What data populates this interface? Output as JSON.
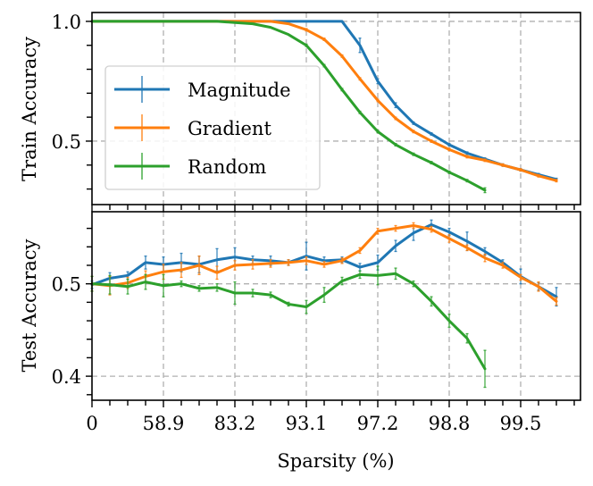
{
  "chart_data": [
    {
      "type": "line",
      "panel": "top",
      "title": "",
      "xlabel": "",
      "ylabel": "Train Accuracy",
      "ylim": [
        0.235,
        1.037
      ],
      "yticks_major": [
        0.5,
        1.0
      ],
      "ytick_labels": [
        "0.5",
        "1.0"
      ],
      "yticks_minor_step": 0.1,
      "x_index": [
        0,
        1,
        2,
        3,
        4,
        5,
        6,
        7,
        8,
        9,
        10,
        11,
        12,
        13,
        14,
        15,
        16,
        17,
        18,
        19,
        20,
        21,
        22,
        23,
        24,
        25,
        26
      ],
      "grid": true,
      "legend": {
        "placement": "center-left",
        "entries": [
          "Magnitude",
          "Gradient",
          "Random"
        ]
      },
      "series": [
        {
          "name": "Magnitude",
          "color": "#1f77b4",
          "values": [
            1.0,
            1.0,
            1.0,
            1.0,
            1.0,
            1.0,
            1.0,
            1.0,
            1.0,
            1.0,
            1.0,
            1.0,
            1.0,
            1.0,
            1.0,
            0.9,
            0.75,
            0.65,
            0.575,
            0.53,
            0.485,
            0.45,
            0.425,
            0.4,
            0.38,
            0.36,
            0.34
          ],
          "errors": [
            0,
            0,
            0,
            0,
            0,
            0,
            0,
            0,
            0,
            0,
            0,
            0,
            0,
            0,
            0,
            0.03,
            0.01,
            0.01,
            0.005,
            0.005,
            0.005,
            0.005,
            0.005,
            0.005,
            0.005,
            0.005,
            0.005
          ]
        },
        {
          "name": "Gradient",
          "color": "#ff7f0e",
          "values": [
            1.0,
            1.0,
            1.0,
            1.0,
            1.0,
            1.0,
            1.0,
            1.0,
            1.0,
            1.0,
            1.0,
            0.99,
            0.965,
            0.925,
            0.855,
            0.76,
            0.67,
            0.595,
            0.54,
            0.5,
            0.465,
            0.435,
            0.42,
            0.4,
            0.38,
            0.355,
            0.335
          ],
          "errors": [
            0,
            0,
            0,
            0,
            0,
            0,
            0,
            0,
            0,
            0,
            0,
            0,
            0.005,
            0.005,
            0.005,
            0.005,
            0.005,
            0.005,
            0.005,
            0.005,
            0.005,
            0.005,
            0.005,
            0.005,
            0.005,
            0.005,
            0.005
          ]
        },
        {
          "name": "Random",
          "color": "#2ca02c",
          "values": [
            1.0,
            1.0,
            1.0,
            1.0,
            1.0,
            1.0,
            1.0,
            1.0,
            0.995,
            0.99,
            0.975,
            0.945,
            0.9,
            0.815,
            0.715,
            0.62,
            0.54,
            0.485,
            0.445,
            0.41,
            0.37,
            0.335,
            0.295
          ],
          "errors": [
            0,
            0,
            0,
            0,
            0,
            0,
            0,
            0,
            0,
            0,
            0,
            0,
            0.005,
            0.005,
            0.005,
            0.005,
            0.005,
            0.005,
            0.005,
            0.005,
            0.005,
            0.005,
            0.01
          ]
        }
      ]
    },
    {
      "type": "line",
      "panel": "bottom",
      "title": "",
      "xlabel": "Sparsity (%)",
      "ylabel": "Test Accuracy",
      "ylim": [
        0.374,
        0.578
      ],
      "yticks_major": [
        0.4,
        0.5
      ],
      "ytick_labels": [
        "0.4",
        "0.5"
      ],
      "yticks_minor_step": 0.02,
      "xtick_labels": [
        "0",
        "58.9",
        "83.2",
        "93.1",
        "97.2",
        "98.8",
        "99.5"
      ],
      "xtick_major_every": 4,
      "x_range_index": [
        0,
        27.35
      ],
      "grid": true,
      "series": [
        {
          "name": "Magnitude",
          "color": "#1f77b4",
          "values": [
            0.499,
            0.506,
            0.509,
            0.523,
            0.521,
            0.523,
            0.521,
            0.526,
            0.529,
            0.526,
            0.525,
            0.523,
            0.53,
            0.525,
            0.526,
            0.518,
            0.523,
            0.541,
            0.555,
            0.564,
            0.556,
            0.546,
            0.535,
            0.523,
            0.508,
            0.497,
            0.486
          ],
          "errors": [
            0.004,
            0.006,
            0.004,
            0.007,
            0.008,
            0.01,
            0.009,
            0.012,
            0.01,
            0.004,
            0.005,
            0.003,
            0.015,
            0.004,
            0.003,
            0.004,
            0.008,
            0.006,
            0.008,
            0.005,
            0.004,
            0.01,
            0.004,
            0.003,
            0.008,
            0.004,
            0.01
          ]
        },
        {
          "name": "Gradient",
          "color": "#ff7f0e",
          "values": [
            0.5,
            0.498,
            0.501,
            0.508,
            0.513,
            0.515,
            0.52,
            0.512,
            0.52,
            0.521,
            0.522,
            0.523,
            0.525,
            0.521,
            0.525,
            0.536,
            0.557,
            0.56,
            0.563,
            0.559,
            0.549,
            0.539,
            0.528,
            0.52,
            0.507,
            0.497,
            0.481
          ],
          "errors": [
            0.008,
            0.01,
            0.006,
            0.006,
            0.008,
            0.008,
            0.01,
            0.007,
            0.005,
            0.005,
            0.004,
            0.003,
            0.004,
            0.003,
            0.003,
            0.003,
            0.003,
            0.003,
            0.003,
            0.003,
            0.004,
            0.003,
            0.004,
            0.003,
            0.003,
            0.005,
            0.004
          ]
        },
        {
          "name": "Random",
          "color": "#2ca02c",
          "values": [
            0.5,
            0.499,
            0.497,
            0.502,
            0.498,
            0.5,
            0.495,
            0.496,
            0.49,
            0.49,
            0.488,
            0.478,
            0.475,
            0.488,
            0.503,
            0.51,
            0.509,
            0.511,
            0.5,
            0.481,
            0.46,
            0.441,
            0.408
          ],
          "errors": [
            0.008,
            0.01,
            0.008,
            0.008,
            0.012,
            0.003,
            0.003,
            0.004,
            0.012,
            0.004,
            0.003,
            0.002,
            0.007,
            0.008,
            0.004,
            0.004,
            0.01,
            0.006,
            0.003,
            0.005,
            0.007,
            0.005,
            0.02
          ]
        }
      ]
    }
  ]
}
